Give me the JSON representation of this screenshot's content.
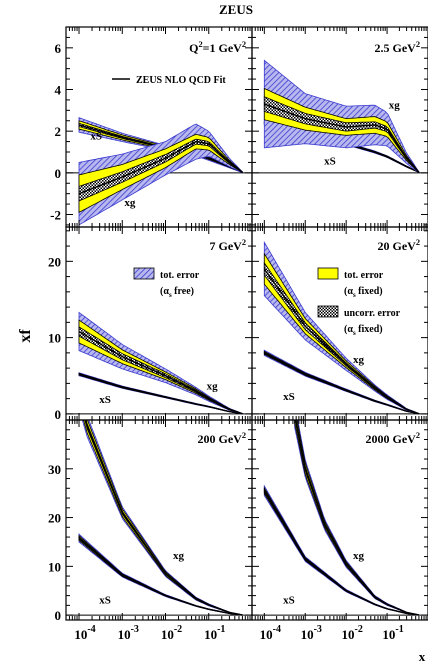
{
  "figure": {
    "title": "ZEUS",
    "ylabel": "xf",
    "xlabel": "x"
  },
  "chart_data": [
    {
      "type": "area",
      "panel": "top-left",
      "label": "Q2=1 GeV2",
      "legend_line": "ZEUS NLO QCD Fit",
      "xscale": "log",
      "xlim": [
        5e-05,
        1
      ],
      "ylim": [
        -2.6,
        7
      ],
      "yticks": [
        -2,
        0,
        2,
        4,
        6
      ],
      "series": [
        {
          "name": "xS",
          "x": [
            0.0001,
            0.001,
            0.01,
            0.05,
            0.1,
            0.3,
            0.6
          ],
          "y": [
            2.3,
            1.7,
            1.2,
            0.9,
            0.7,
            0.3,
            0.03
          ],
          "tot_err": [
            0.35,
            0.2,
            0.12,
            0.1,
            0.1,
            0.06,
            0.02
          ],
          "fix_err": [
            0.2,
            0.12,
            0.08,
            0.06,
            0.05,
            0.03,
            0.01
          ],
          "unc_err": [
            0.08,
            0.05,
            0.03,
            0.03,
            0.03,
            0.02,
            0.01
          ]
        },
        {
          "name": "xg",
          "x": [
            0.0001,
            0.001,
            0.01,
            0.05,
            0.1,
            0.3,
            0.6
          ],
          "y": [
            -1.0,
            -0.2,
            0.7,
            1.5,
            1.4,
            0.5,
            0.03
          ],
          "tot_err": [
            1.5,
            1.1,
            0.8,
            0.85,
            0.6,
            0.2,
            0.02
          ],
          "fix_err": [
            0.9,
            0.6,
            0.45,
            0.35,
            0.3,
            0.1,
            0.01
          ],
          "unc_err": [
            0.35,
            0.25,
            0.18,
            0.12,
            0.1,
            0.05,
            0.01
          ]
        }
      ],
      "labels": [
        {
          "text": "xS",
          "x": 0.00025,
          "y": 1.6
        },
        {
          "text": "xg",
          "x": 0.0015,
          "y": -1.6
        }
      ]
    },
    {
      "type": "area",
      "panel": "top-right",
      "label": "2.5 GeV2",
      "xscale": "log",
      "xlim": [
        5e-05,
        1
      ],
      "ylim": [
        -2.6,
        7
      ],
      "series": [
        {
          "name": "xS",
          "x": [
            0.0001,
            0.001,
            0.01,
            0.05,
            0.1,
            0.3,
            0.6
          ],
          "y": [
            2.4,
            1.85,
            1.4,
            1.0,
            0.78,
            0.3,
            0.03
          ],
          "tot_err": [
            0.1,
            0.08,
            0.06,
            0.05,
            0.04,
            0.03,
            0.01
          ],
          "fix_err": [
            0.06,
            0.05,
            0.04,
            0.03,
            0.03,
            0.02,
            0.01
          ],
          "unc_err": [
            0.03,
            0.03,
            0.02,
            0.02,
            0.02,
            0.01,
            0.01
          ]
        },
        {
          "name": "xg",
          "x": [
            0.0001,
            0.001,
            0.01,
            0.05,
            0.1,
            0.3,
            0.6
          ],
          "y": [
            3.3,
            2.6,
            2.2,
            2.3,
            2.1,
            0.7,
            0.03
          ],
          "tot_err": [
            2.1,
            1.2,
            1.0,
            0.95,
            0.8,
            0.25,
            0.02
          ],
          "fix_err": [
            0.75,
            0.55,
            0.4,
            0.4,
            0.35,
            0.12,
            0.01
          ],
          "unc_err": [
            0.35,
            0.25,
            0.2,
            0.15,
            0.12,
            0.05,
            0.01
          ]
        }
      ],
      "labels": [
        {
          "text": "xg",
          "x": 0.15,
          "y": 3.1
        },
        {
          "text": "xS",
          "x": 0.004,
          "y": 0.4
        }
      ]
    },
    {
      "type": "area",
      "panel": "middle-left",
      "label": "7 GeV2",
      "legend": [
        {
          "swatch": "hatched-blue",
          "text": "tot. error",
          "sub": "(αs free)"
        }
      ],
      "xscale": "log",
      "xlim": [
        5e-05,
        1
      ],
      "ylim": [
        -0.8,
        24.5
      ],
      "yticks": [
        0,
        10,
        20
      ],
      "series": [
        {
          "name": "xS",
          "x": [
            0.0001,
            0.001,
            0.01,
            0.05,
            0.1,
            0.3,
            0.6
          ],
          "y": [
            5.2,
            3.5,
            2.2,
            1.3,
            0.95,
            0.3,
            0.03
          ],
          "tot_err": [
            0.2,
            0.15,
            0.1,
            0.08,
            0.06,
            0.03,
            0.01
          ],
          "fix_err": [
            0.12,
            0.1,
            0.07,
            0.05,
            0.04,
            0.02,
            0.01
          ],
          "unc_err": [
            0.06,
            0.05,
            0.04,
            0.03,
            0.02,
            0.01,
            0.01
          ]
        },
        {
          "name": "xg",
          "x": [
            0.0001,
            0.001,
            0.01,
            0.05,
            0.1,
            0.3,
            0.6
          ],
          "y": [
            10.8,
            7.5,
            5.0,
            3.0,
            2.0,
            0.6,
            0.03
          ],
          "tot_err": [
            2.5,
            1.6,
            0.9,
            0.5,
            0.35,
            0.12,
            0.02
          ],
          "fix_err": [
            1.5,
            0.9,
            0.5,
            0.3,
            0.2,
            0.08,
            0.01
          ],
          "unc_err": [
            0.6,
            0.4,
            0.25,
            0.15,
            0.1,
            0.04,
            0.01
          ]
        }
      ],
      "labels": [
        {
          "text": "xg",
          "x": 0.12,
          "y": 3.2
        },
        {
          "text": "xS",
          "x": 0.0004,
          "y": 1.4
        }
      ]
    },
    {
      "type": "area",
      "panel": "middle-right",
      "label": "20 GeV2",
      "legend": [
        {
          "swatch": "yellow",
          "text": "tot. error",
          "sub": "(αs fixed)"
        },
        {
          "swatch": "crosshatch",
          "text": "uncorr. error",
          "sub": "(αs fixed)"
        }
      ],
      "xscale": "log",
      "xlim": [
        5e-05,
        1
      ],
      "ylim": [
        -0.8,
        24.5
      ],
      "series": [
        {
          "name": "xS",
          "x": [
            0.0001,
            0.001,
            0.01,
            0.05,
            0.1,
            0.3,
            0.6
          ],
          "y": [
            8.0,
            5.2,
            3.1,
            1.7,
            1.2,
            0.35,
            0.03
          ],
          "tot_err": [
            0.35,
            0.25,
            0.15,
            0.1,
            0.08,
            0.04,
            0.01
          ],
          "fix_err": [
            0.2,
            0.15,
            0.1,
            0.07,
            0.05,
            0.02,
            0.01
          ],
          "unc_err": [
            0.1,
            0.08,
            0.06,
            0.04,
            0.03,
            0.01,
            0.01
          ]
        },
        {
          "name": "xg",
          "x": [
            0.0001,
            0.001,
            0.01,
            0.05,
            0.1,
            0.3,
            0.6
          ],
          "y": [
            19.0,
            11.5,
            6.5,
            3.4,
            2.2,
            0.6,
            0.03
          ],
          "tot_err": [
            3.5,
            1.8,
            0.8,
            0.4,
            0.3,
            0.1,
            0.02
          ],
          "fix_err": [
            2.0,
            1.0,
            0.45,
            0.25,
            0.18,
            0.06,
            0.01
          ],
          "unc_err": [
            0.8,
            0.45,
            0.2,
            0.12,
            0.08,
            0.03,
            0.01
          ]
        }
      ],
      "labels": [
        {
          "text": "xg",
          "x": 0.02,
          "y": 6.7
        },
        {
          "text": "xS",
          "x": 0.0004,
          "y": 1.8
        }
      ]
    },
    {
      "type": "area",
      "panel": "bottom-left",
      "label": "200 GeV2",
      "xscale": "log",
      "xlim": [
        5e-05,
        1
      ],
      "ylim": [
        -1,
        40
      ],
      "yticks": [
        0,
        10,
        20,
        30
      ],
      "series": [
        {
          "name": "xS",
          "x": [
            0.0001,
            0.001,
            0.01,
            0.05,
            0.1,
            0.3,
            0.6
          ],
          "y": [
            15.8,
            8.2,
            4.0,
            1.9,
            1.2,
            0.35,
            0.03
          ],
          "tot_err": [
            0.8,
            0.4,
            0.2,
            0.1,
            0.08,
            0.03,
            0.01
          ],
          "fix_err": [
            0.5,
            0.25,
            0.12,
            0.07,
            0.05,
            0.02,
            0.01
          ],
          "unc_err": [
            0.25,
            0.12,
            0.06,
            0.04,
            0.03,
            0.01,
            0.01
          ]
        },
        {
          "name": "xg",
          "x": [
            0.0001,
            0.00015,
            0.001,
            0.01,
            0.05,
            0.1,
            0.3,
            0.6
          ],
          "y": [
            45,
            39,
            21.0,
            8.5,
            3.4,
            2.1,
            0.55,
            0.03
          ],
          "tot_err": [
            2.5,
            2.2,
            1.2,
            0.6,
            0.3,
            0.2,
            0.06,
            0.02
          ],
          "fix_err": [
            1.6,
            1.4,
            0.8,
            0.4,
            0.2,
            0.12,
            0.04,
            0.01
          ],
          "unc_err": [
            0.6,
            0.5,
            0.3,
            0.15,
            0.08,
            0.05,
            0.02,
            0.01
          ]
        }
      ],
      "labels": [
        {
          "text": "xg",
          "x": 0.02,
          "y": 11.5
        },
        {
          "text": "xS",
          "x": 0.0004,
          "y": 2.4
        }
      ]
    },
    {
      "type": "area",
      "panel": "bottom-right",
      "label": "2000 GeV2",
      "xscale": "log",
      "xlim": [
        5e-05,
        1
      ],
      "ylim": [
        -1,
        40
      ],
      "series": [
        {
          "name": "xS",
          "x": [
            0.0001,
            0.001,
            0.01,
            0.05,
            0.1,
            0.3,
            0.6
          ],
          "y": [
            25.5,
            11.5,
            5.0,
            2.2,
            1.3,
            0.35,
            0.03
          ],
          "tot_err": [
            1.0,
            0.5,
            0.25,
            0.12,
            0.08,
            0.03,
            0.01
          ],
          "fix_err": [
            0.6,
            0.3,
            0.15,
            0.08,
            0.05,
            0.02,
            0.01
          ],
          "unc_err": [
            0.3,
            0.15,
            0.08,
            0.04,
            0.03,
            0.01,
            0.01
          ]
        },
        {
          "name": "xg",
          "x": [
            0.00055,
            0.001,
            0.003,
            0.01,
            0.05,
            0.1,
            0.3,
            0.6
          ],
          "y": [
            41,
            30.0,
            18.5,
            10.5,
            3.7,
            2.2,
            0.55,
            0.03
          ],
          "tot_err": [
            2.5,
            1.8,
            1.1,
            0.7,
            0.3,
            0.2,
            0.06,
            0.02
          ],
          "fix_err": [
            1.6,
            1.2,
            0.7,
            0.45,
            0.2,
            0.12,
            0.04,
            0.01
          ],
          "unc_err": [
            0.6,
            0.45,
            0.3,
            0.18,
            0.08,
            0.05,
            0.02,
            0.01
          ]
        }
      ],
      "labels": [
        {
          "text": "xg",
          "x": 0.02,
          "y": 11.5
        },
        {
          "text": "xS",
          "x": 0.0004,
          "y": 2.4
        }
      ]
    }
  ],
  "xticks": [
    {
      "pos": 0.0001,
      "base": "10",
      "exp": "-4"
    },
    {
      "pos": 0.001,
      "base": "10",
      "exp": "-3"
    },
    {
      "pos": 0.01,
      "base": "10",
      "exp": "-2"
    },
    {
      "pos": 0.1,
      "base": "10",
      "exp": "-1"
    }
  ],
  "colors": {
    "tot_err": "#3b3bd0",
    "fix_err": "#ffff00",
    "unc_err": "#000000",
    "central": "#000000"
  }
}
